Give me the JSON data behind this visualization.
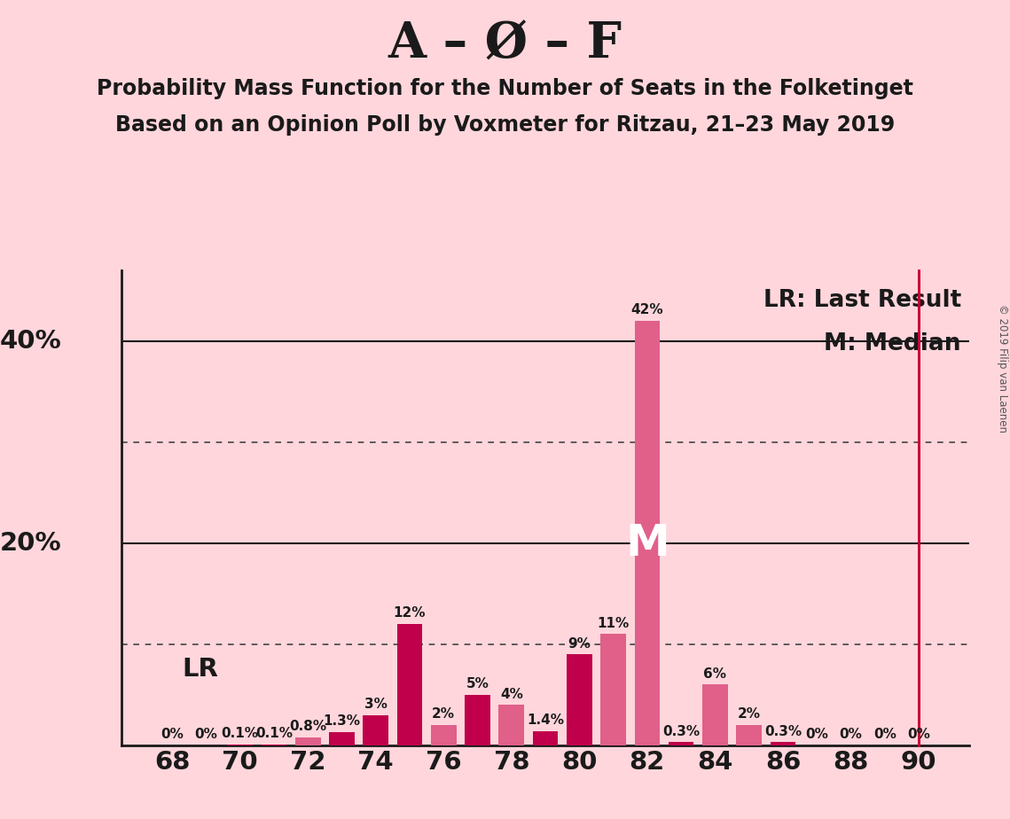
{
  "title_main": "A – Ø – F",
  "subtitle1": "Probability Mass Function for the Number of Seats in the Folketinget",
  "subtitle2": "Based on an Opinion Poll by Voxmeter for Ritzau, 21–23 May 2019",
  "background_color": "#FFD6DC",
  "seats": [
    68,
    69,
    70,
    71,
    72,
    73,
    74,
    75,
    76,
    77,
    78,
    79,
    80,
    81,
    82,
    83,
    84,
    85,
    86,
    87,
    88,
    89,
    90
  ],
  "probs": [
    0.0,
    0.0,
    0.1,
    0.1,
    0.8,
    1.3,
    3.0,
    12.0,
    2.0,
    5.0,
    4.0,
    1.4,
    9.0,
    11.0,
    42.0,
    0.3,
    6.0,
    2.0,
    0.3,
    0.0,
    0.0,
    0.0,
    0.0
  ],
  "bar_colors": [
    "#c0004a",
    "#c0004a",
    "#c0004a",
    "#c0004a",
    "#e0608a",
    "#c0004a",
    "#c0004a",
    "#c0004a",
    "#e0608a",
    "#c0004a",
    "#e0608a",
    "#c0004a",
    "#c0004a",
    "#e0608a",
    "#e0608a",
    "#c0004a",
    "#e0608a",
    "#e0608a",
    "#c0004a",
    "#c0004a",
    "#c0004a",
    "#c0004a",
    "#c0004a"
  ],
  "bar_labels": [
    "0%",
    "0%",
    "0.1%",
    "0.1%",
    "0.8%",
    "1.3%",
    "3%",
    "12%",
    "2%",
    "5%",
    "4%",
    "1.4%",
    "9%",
    "11%",
    "42%",
    "0.3%",
    "6%",
    "2%",
    "0.3%",
    "0%",
    "0%",
    "0%",
    "0%"
  ],
  "median_seat": 82,
  "lr_seat": 90,
  "lr_color": "#cc0033",
  "median_color": "#ffffff",
  "xlim": [
    66.5,
    91.5
  ],
  "ylim": [
    0,
    47
  ],
  "solid_lines": [
    20,
    40
  ],
  "dotted_lines": [
    10,
    30
  ],
  "xticks": [
    68,
    70,
    72,
    74,
    76,
    78,
    80,
    82,
    84,
    86,
    88,
    90
  ],
  "ylabels": {
    "20": "20%",
    "40": "40%"
  },
  "copyright_text": "© 2019 Filip van Laenen",
  "legend_lr": "LR: Last Result",
  "legend_m": "M: Median",
  "text_color": "#1a1a1a",
  "spine_color": "#1a1a1a",
  "lr_label": "LR"
}
